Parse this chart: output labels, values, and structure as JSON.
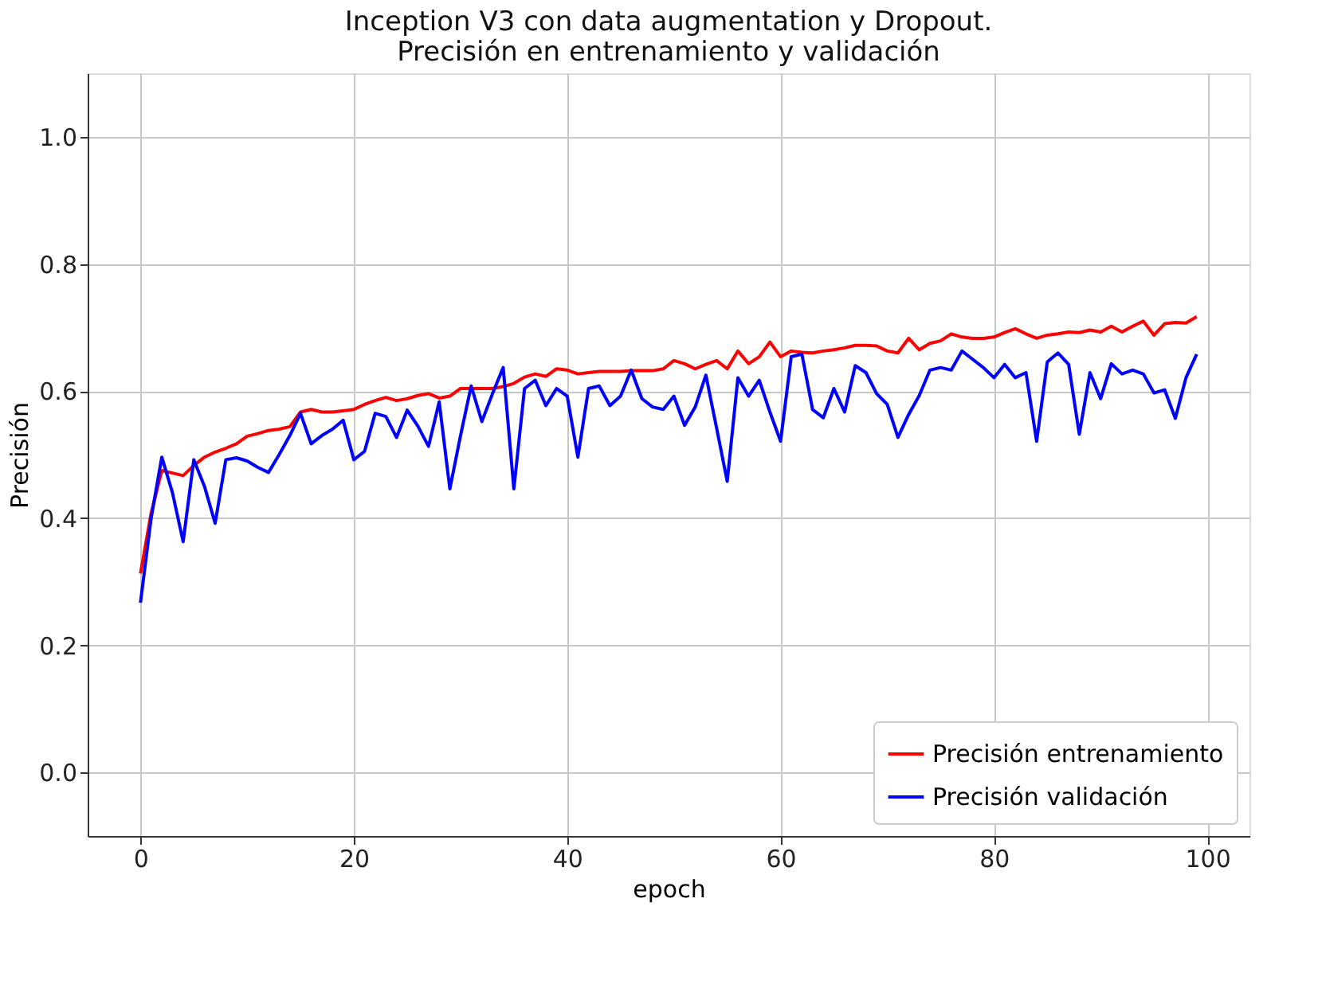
{
  "chart_data": {
    "type": "line",
    "title": [
      "Inception V3 con data augmentation y Dropout.",
      "Precisión en entrenamiento y validación"
    ],
    "xlabel": "epoch",
    "ylabel": "Precisión",
    "x": [
      0,
      1,
      2,
      3,
      4,
      5,
      6,
      7,
      8,
      9,
      10,
      11,
      12,
      13,
      14,
      15,
      16,
      17,
      18,
      19,
      20,
      21,
      22,
      23,
      24,
      25,
      26,
      27,
      28,
      29,
      30,
      31,
      32,
      33,
      34,
      35,
      36,
      37,
      38,
      39,
      40,
      41,
      42,
      43,
      44,
      45,
      46,
      47,
      48,
      49,
      50,
      51,
      52,
      53,
      54,
      55,
      56,
      57,
      58,
      59,
      60,
      61,
      62,
      63,
      64,
      65,
      66,
      67,
      68,
      69,
      70,
      71,
      72,
      73,
      74,
      75,
      76,
      77,
      78,
      79,
      80,
      81,
      82,
      83,
      84,
      85,
      86,
      87,
      88,
      89,
      90,
      91,
      92,
      93,
      94,
      95,
      96,
      97,
      98,
      99
    ],
    "series": [
      {
        "name": "Precisión entrenamiento",
        "color": "#ff0000",
        "values": [
          0.313,
          0.408,
          0.475,
          0.471,
          0.467,
          0.483,
          0.496,
          0.504,
          0.51,
          0.517,
          0.529,
          0.533,
          0.538,
          0.54,
          0.544,
          0.567,
          0.571,
          0.567,
          0.567,
          0.569,
          0.571,
          0.579,
          0.585,
          0.59,
          0.585,
          0.588,
          0.593,
          0.596,
          0.589,
          0.592,
          0.604,
          0.604,
          0.604,
          0.604,
          0.607,
          0.612,
          0.622,
          0.627,
          0.623,
          0.635,
          0.633,
          0.627,
          0.629,
          0.631,
          0.631,
          0.631,
          0.632,
          0.632,
          0.632,
          0.635,
          0.648,
          0.643,
          0.635,
          0.642,
          0.648,
          0.635,
          0.663,
          0.643,
          0.654,
          0.677,
          0.654,
          0.663,
          0.661,
          0.66,
          0.663,
          0.665,
          0.668,
          0.672,
          0.672,
          0.671,
          0.663,
          0.66,
          0.683,
          0.665,
          0.675,
          0.679,
          0.69,
          0.685,
          0.683,
          0.683,
          0.685,
          0.692,
          0.698,
          0.69,
          0.683,
          0.688,
          0.69,
          0.693,
          0.692,
          0.696,
          0.693,
          0.702,
          0.693,
          0.702,
          0.71,
          0.688,
          0.706,
          0.708,
          0.707,
          0.717
        ]
      },
      {
        "name": "Precisión validación",
        "color": "#0000ff",
        "values": [
          0.267,
          0.4,
          0.496,
          0.44,
          0.363,
          0.492,
          0.45,
          0.392,
          0.492,
          0.495,
          0.49,
          0.48,
          0.472,
          0.5,
          0.53,
          0.565,
          0.517,
          0.53,
          0.54,
          0.554,
          0.492,
          0.505,
          0.565,
          0.56,
          0.527,
          0.57,
          0.545,
          0.513,
          0.583,
          0.446,
          0.53,
          0.608,
          0.552,
          0.596,
          0.637,
          0.446,
          0.604,
          0.617,
          0.577,
          0.604,
          0.592,
          0.496,
          0.604,
          0.608,
          0.577,
          0.592,
          0.633,
          0.588,
          0.575,
          0.571,
          0.592,
          0.546,
          0.575,
          0.625,
          0.542,
          0.458,
          0.621,
          0.592,
          0.617,
          0.567,
          0.521,
          0.654,
          0.658,
          0.571,
          0.558,
          0.604,
          0.567,
          0.64,
          0.629,
          0.596,
          0.579,
          0.527,
          0.563,
          0.593,
          0.633,
          0.637,
          0.633,
          0.663,
          0.65,
          0.637,
          0.621,
          0.642,
          0.621,
          0.629,
          0.521,
          0.646,
          0.66,
          0.642,
          0.532,
          0.629,
          0.588,
          0.643,
          0.627,
          0.633,
          0.627,
          0.597,
          0.602,
          0.557,
          0.621,
          0.658
        ]
      }
    ],
    "xlim": [
      -4.95,
      103.95
    ],
    "xticks": [
      0,
      20,
      40,
      60,
      80,
      100
    ],
    "ylim": [
      -0.1,
      1.1
    ],
    "yticks": [
      {
        "value": 0,
        "label": "0.0"
      },
      {
        "value": 0.2,
        "label": "0.2"
      },
      {
        "value": 0.4,
        "label": "0.4"
      },
      {
        "value": 0.6,
        "label": "0.6"
      },
      {
        "value": 0.8,
        "label": "0.8"
      },
      {
        "value": 1,
        "label": "1.0"
      }
    ],
    "grid": true,
    "legend": "bottom right",
    "marker": "none",
    "line_style": "solid"
  }
}
